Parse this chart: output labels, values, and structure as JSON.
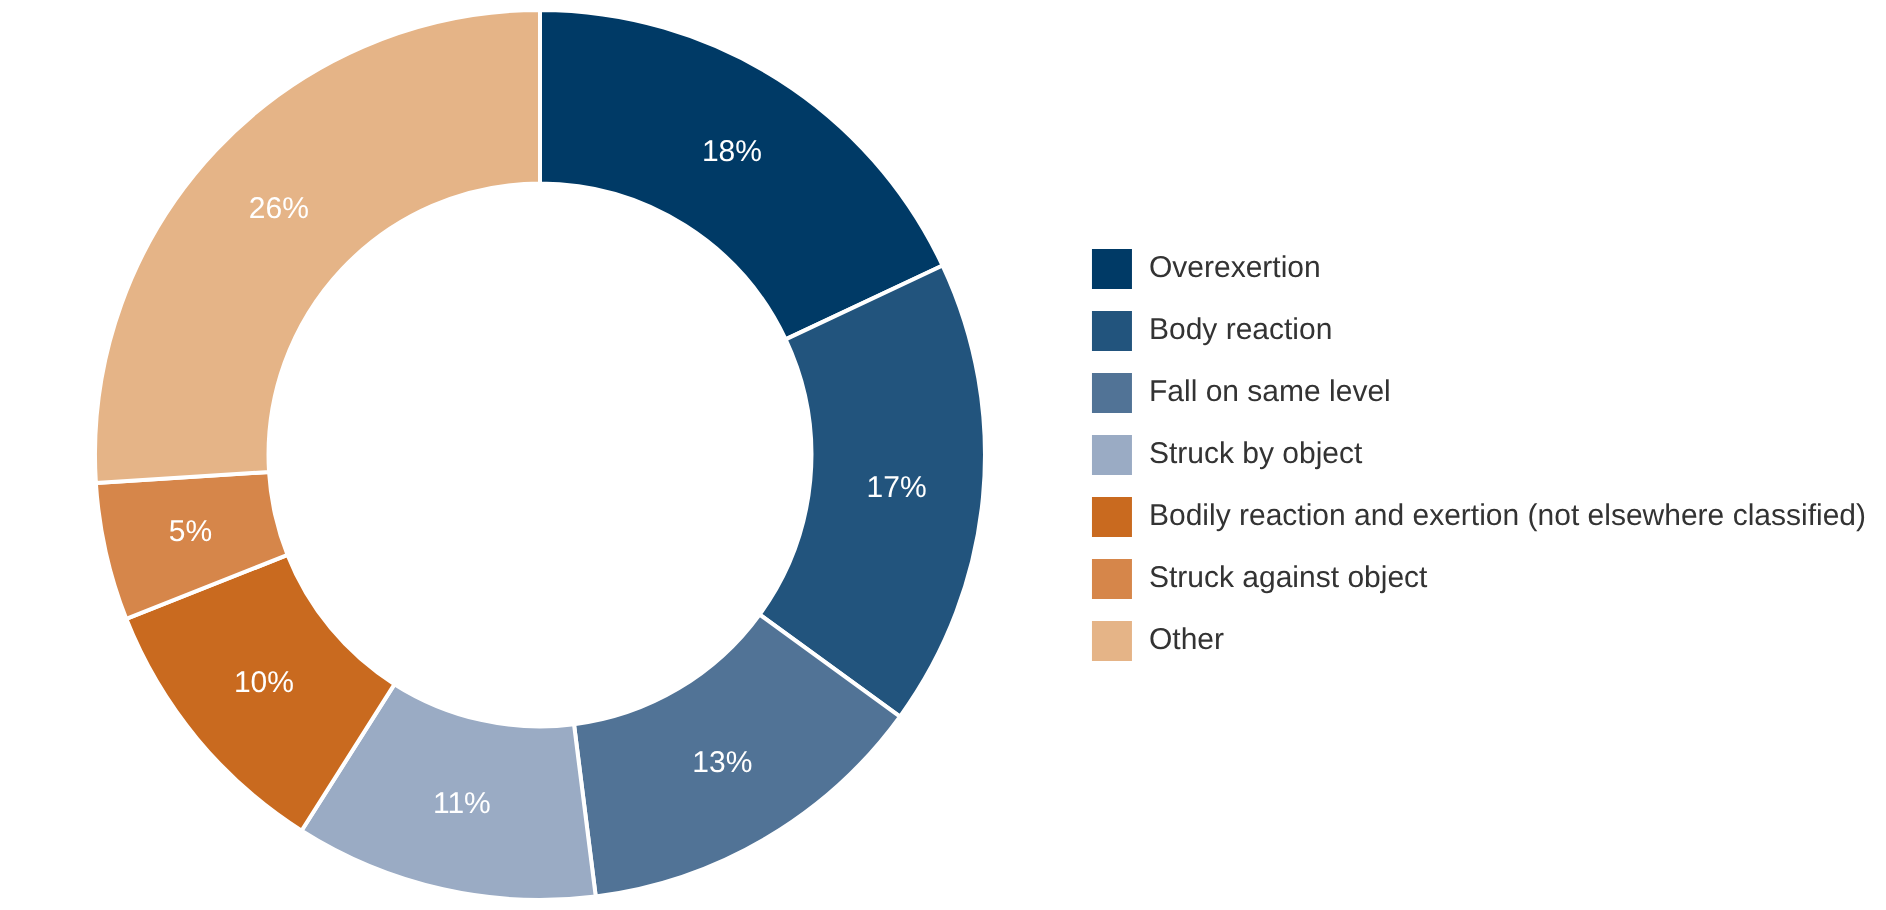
{
  "chart_data": {
    "type": "donut",
    "categories": [
      "Overexertion",
      "Body reaction",
      "Fall on same level",
      "Struck by object",
      "Bodily reaction and exertion (not elsewhere classified)",
      "Struck against object",
      "Other"
    ],
    "values": [
      18,
      17,
      13,
      11,
      10,
      5,
      26
    ],
    "colors": [
      "#003a66",
      "#22547d",
      "#517396",
      "#9aabc4",
      "#c96a1f",
      "#d6864a",
      "#e5b487"
    ],
    "value_labels": [
      "18%",
      "17%",
      "13%",
      "11%",
      "10%",
      "5%",
      "26%"
    ],
    "legend": "right"
  }
}
